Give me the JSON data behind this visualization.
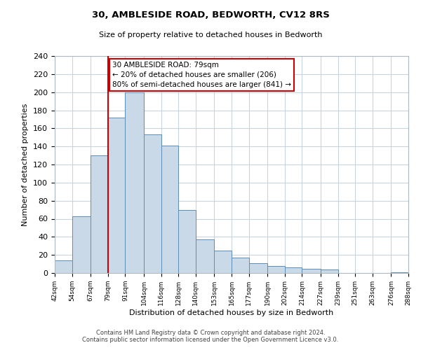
{
  "title": "30, AMBLESIDE ROAD, BEDWORTH, CV12 8RS",
  "subtitle": "Size of property relative to detached houses in Bedworth",
  "xlabel": "Distribution of detached houses by size in Bedworth",
  "ylabel": "Number of detached properties",
  "bar_left_edges": [
    42,
    54,
    67,
    79,
    91,
    104,
    116,
    128,
    140,
    153,
    165,
    177,
    190,
    202,
    214,
    227,
    239,
    251,
    263,
    276
  ],
  "bar_heights": [
    14,
    63,
    130,
    172,
    200,
    153,
    141,
    70,
    37,
    25,
    17,
    11,
    8,
    6,
    5,
    4,
    0,
    0,
    0,
    1
  ],
  "bar_widths": [
    12,
    13,
    12,
    12,
    13,
    12,
    12,
    12,
    13,
    12,
    12,
    13,
    12,
    12,
    13,
    12,
    12,
    12,
    13,
    12
  ],
  "tick_labels": [
    "42sqm",
    "54sqm",
    "67sqm",
    "79sqm",
    "91sqm",
    "104sqm",
    "116sqm",
    "128sqm",
    "140sqm",
    "153sqm",
    "165sqm",
    "177sqm",
    "190sqm",
    "202sqm",
    "214sqm",
    "227sqm",
    "239sqm",
    "251sqm",
    "263sqm",
    "276sqm",
    "288sqm"
  ],
  "bar_face_color": "#c9d9e8",
  "bar_edge_color": "#5b8db8",
  "vline_x": 79,
  "vline_color": "#cc0000",
  "annotation_line1": "30 AMBLESIDE ROAD: 79sqm",
  "annotation_line2": "← 20% of detached houses are smaller (206)",
  "annotation_line3": "80% of semi-detached houses are larger (841) →",
  "annotation_box_color": "#cc0000",
  "ylim": [
    0,
    240
  ],
  "yticks": [
    0,
    20,
    40,
    60,
    80,
    100,
    120,
    140,
    160,
    180,
    200,
    220,
    240
  ],
  "grid_color": "#c8d4de",
  "background_color": "#ffffff",
  "footer_line1": "Contains HM Land Registry data © Crown copyright and database right 2024.",
  "footer_line2": "Contains public sector information licensed under the Open Government Licence v3.0."
}
